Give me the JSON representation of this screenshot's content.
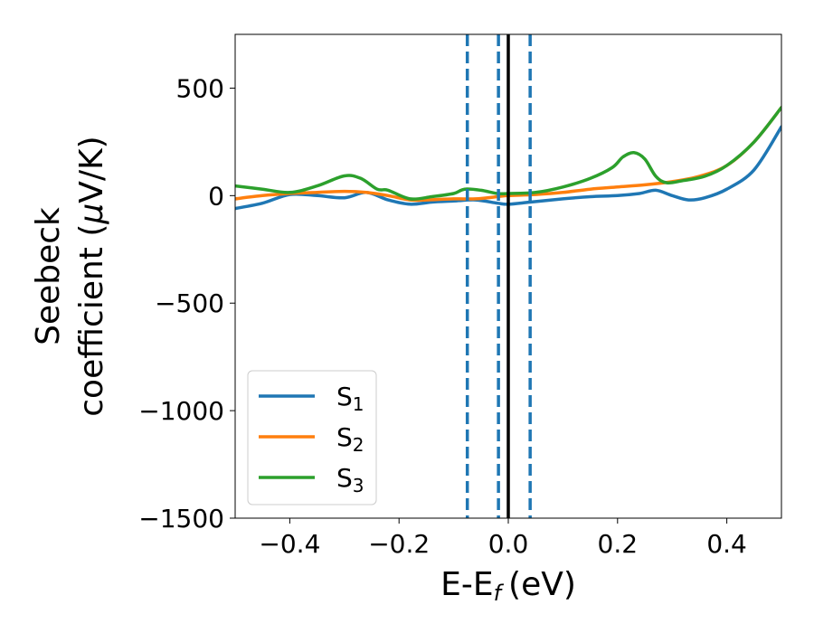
{
  "chart_data": {
    "type": "line",
    "xlabel": "E-E",
    "xlabel_sub": "f",
    "xlabel_unit": "(eV)",
    "ylabel_line1": "Seebeck",
    "ylabel_line2": "coefficient  (",
    "ylabel_mu": "μ",
    "ylabel_unit": "V/K)",
    "xlim": [
      -0.5,
      0.5
    ],
    "ylim": [
      -1500,
      750
    ],
    "x_ticks": [
      -0.4,
      -0.2,
      0.0,
      0.2,
      0.4
    ],
    "x_tick_labels": [
      "−0.4",
      "−0.2",
      "0.0",
      "0.2",
      "0.4"
    ],
    "y_ticks": [
      -1500,
      -1000,
      -500,
      0,
      500
    ],
    "y_tick_labels": [
      "−1500",
      "−1000",
      "−500",
      "0",
      "500"
    ],
    "grid": false,
    "legend_position": "lower-left",
    "vertical_lines": [
      {
        "x": -0.075,
        "style": "dashed",
        "color": "#1f77b4"
      },
      {
        "x": -0.018,
        "style": "dashed",
        "color": "#1f77b4"
      },
      {
        "x": 0.0,
        "style": "solid",
        "color": "#000000"
      },
      {
        "x": 0.04,
        "style": "dashed",
        "color": "#1f77b4"
      }
    ],
    "series": [
      {
        "name": "S",
        "name_sub": "1",
        "color": "#1f77b4",
        "points": [
          [
            -0.5,
            -60
          ],
          [
            -0.45,
            -35
          ],
          [
            -0.4,
            5
          ],
          [
            -0.35,
            0
          ],
          [
            -0.3,
            -10
          ],
          [
            -0.26,
            15
          ],
          [
            -0.22,
            -20
          ],
          [
            -0.18,
            -40
          ],
          [
            -0.14,
            -30
          ],
          [
            -0.1,
            -25
          ],
          [
            -0.06,
            -20
          ],
          [
            -0.02,
            -35
          ],
          [
            0.0,
            -40
          ],
          [
            0.04,
            -30
          ],
          [
            0.1,
            -15
          ],
          [
            0.15,
            -5
          ],
          [
            0.2,
            0
          ],
          [
            0.24,
            10
          ],
          [
            0.27,
            25
          ],
          [
            0.3,
            0
          ],
          [
            0.33,
            -20
          ],
          [
            0.36,
            -10
          ],
          [
            0.4,
            30
          ],
          [
            0.45,
            120
          ],
          [
            0.5,
            320
          ]
        ]
      },
      {
        "name": "S",
        "name_sub": "2",
        "color": "#ff7f0e",
        "points": [
          [
            -0.5,
            -15
          ],
          [
            -0.45,
            0
          ],
          [
            -0.4,
            10
          ],
          [
            -0.35,
            15
          ],
          [
            -0.3,
            20
          ],
          [
            -0.26,
            15
          ],
          [
            -0.22,
            0
          ],
          [
            -0.18,
            -20
          ],
          [
            -0.15,
            -20
          ],
          [
            -0.1,
            -15
          ],
          [
            -0.06,
            -15
          ],
          [
            -0.02,
            -5
          ],
          [
            0.0,
            0
          ],
          [
            0.05,
            5
          ],
          [
            0.1,
            15
          ],
          [
            0.15,
            30
          ],
          [
            0.2,
            40
          ],
          [
            0.25,
            50
          ],
          [
            0.3,
            65
          ],
          [
            0.35,
            90
          ],
          [
            0.4,
            140
          ],
          [
            0.45,
            250
          ],
          [
            0.5,
            410
          ]
        ]
      },
      {
        "name": "S",
        "name_sub": "3",
        "color": "#2ca02c",
        "points": [
          [
            -0.5,
            45
          ],
          [
            -0.45,
            30
          ],
          [
            -0.4,
            15
          ],
          [
            -0.35,
            45
          ],
          [
            -0.3,
            92
          ],
          [
            -0.27,
            80
          ],
          [
            -0.24,
            30
          ],
          [
            -0.22,
            25
          ],
          [
            -0.18,
            -15
          ],
          [
            -0.14,
            -5
          ],
          [
            -0.1,
            10
          ],
          [
            -0.08,
            30
          ],
          [
            -0.05,
            25
          ],
          [
            -0.02,
            10
          ],
          [
            0.0,
            10
          ],
          [
            0.05,
            15
          ],
          [
            0.1,
            40
          ],
          [
            0.15,
            80
          ],
          [
            0.19,
            130
          ],
          [
            0.21,
            180
          ],
          [
            0.23,
            200
          ],
          [
            0.25,
            170
          ],
          [
            0.27,
            90
          ],
          [
            0.29,
            60
          ],
          [
            0.32,
            70
          ],
          [
            0.36,
            90
          ],
          [
            0.4,
            140
          ],
          [
            0.45,
            250
          ],
          [
            0.5,
            410
          ]
        ]
      }
    ]
  }
}
